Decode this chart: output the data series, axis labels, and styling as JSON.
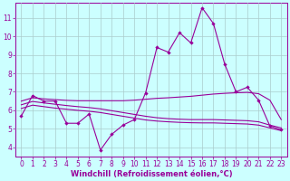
{
  "x": [
    0,
    1,
    2,
    3,
    4,
    5,
    6,
    7,
    8,
    9,
    10,
    11,
    12,
    13,
    14,
    15,
    16,
    17,
    18,
    19,
    20,
    21,
    22,
    23
  ],
  "windchill": [
    5.7,
    6.8,
    6.5,
    6.5,
    5.3,
    5.3,
    5.8,
    3.85,
    4.7,
    5.2,
    5.5,
    6.95,
    9.4,
    9.15,
    10.2,
    9.65,
    11.55,
    10.7,
    8.5,
    7.0,
    7.25,
    6.55,
    5.15,
    4.95
  ],
  "line2": [
    6.5,
    6.68,
    6.62,
    6.58,
    6.54,
    6.52,
    6.52,
    6.52,
    6.52,
    6.52,
    6.55,
    6.6,
    6.65,
    6.68,
    6.72,
    6.76,
    6.82,
    6.88,
    6.92,
    6.95,
    6.97,
    6.9,
    6.55,
    5.5
  ],
  "line3": [
    6.3,
    6.48,
    6.4,
    6.33,
    6.26,
    6.2,
    6.15,
    6.08,
    5.98,
    5.88,
    5.78,
    5.68,
    5.6,
    5.55,
    5.52,
    5.5,
    5.5,
    5.5,
    5.48,
    5.46,
    5.44,
    5.38,
    5.2,
    5.05
  ],
  "line4": [
    6.1,
    6.28,
    6.2,
    6.12,
    6.06,
    6.0,
    5.95,
    5.88,
    5.78,
    5.68,
    5.58,
    5.48,
    5.42,
    5.38,
    5.35,
    5.33,
    5.32,
    5.32,
    5.3,
    5.28,
    5.26,
    5.2,
    5.05,
    4.9
  ],
  "line_color": "#990099",
  "bg_color": "#ccffff",
  "grid_color": "#aacccc",
  "xlabel": "Windchill (Refroidissement éolien,°C)",
  "xlim": [
    -0.5,
    23.5
  ],
  "ylim": [
    3.5,
    11.8
  ],
  "yticks": [
    4,
    5,
    6,
    7,
    8,
    9,
    10,
    11
  ],
  "xticks": [
    0,
    1,
    2,
    3,
    4,
    5,
    6,
    7,
    8,
    9,
    10,
    11,
    12,
    13,
    14,
    15,
    16,
    17,
    18,
    19,
    20,
    21,
    22,
    23
  ],
  "tick_fontsize": 5.5,
  "xlabel_fontsize": 6.0
}
